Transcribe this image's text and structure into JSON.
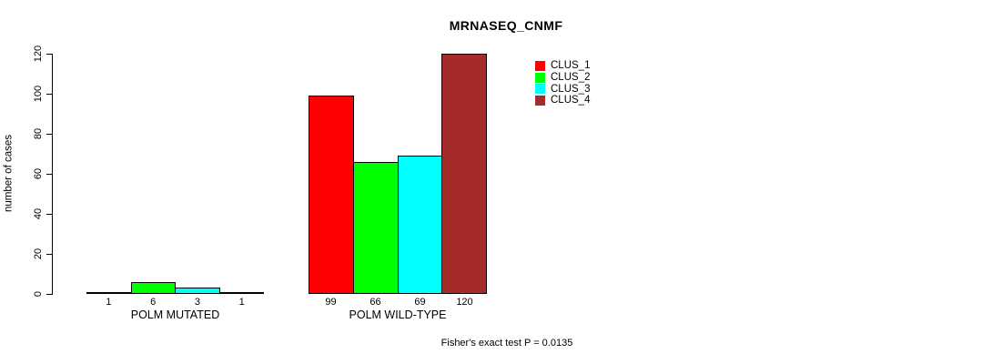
{
  "title": "MRNASEQ_CNMF",
  "ylabel": "number of cases",
  "footer": "Fisher's exact test P = 0.0135",
  "legend": {
    "items": [
      {
        "label": "CLUS_1",
        "color": "#FF0000"
      },
      {
        "label": "CLUS_2",
        "color": "#00FF00"
      },
      {
        "label": "CLUS_3",
        "color": "#00FFFF"
      },
      {
        "label": "CLUS_4",
        "color": "#A52A2A"
      }
    ]
  },
  "chart_data": {
    "type": "bar",
    "title": "MRNASEQ_CNMF",
    "xlabel": "",
    "ylabel": "number of cases",
    "categories": [
      "POLM MUTATED",
      "POLM WILD-TYPE"
    ],
    "series": [
      {
        "name": "CLUS_1",
        "color": "#FF0000",
        "values": [
          1,
          99
        ]
      },
      {
        "name": "CLUS_2",
        "color": "#00FF00",
        "values": [
          6,
          66
        ]
      },
      {
        "name": "CLUS_3",
        "color": "#00FFFF",
        "values": [
          3,
          69
        ]
      },
      {
        "name": "CLUS_4",
        "color": "#A52A2A",
        "values": [
          1,
          120
        ]
      }
    ],
    "bar_value_labels": [
      [
        1,
        6,
        3,
        1
      ],
      [
        99,
        66,
        69,
        120
      ]
    ],
    "yticks": [
      0,
      20,
      40,
      60,
      80,
      100,
      120
    ],
    "ylim": [
      0,
      120
    ],
    "grid": false,
    "legend_position": "right-of-plot-top",
    "annotation": "Fisher's exact test P = 0.0135"
  }
}
